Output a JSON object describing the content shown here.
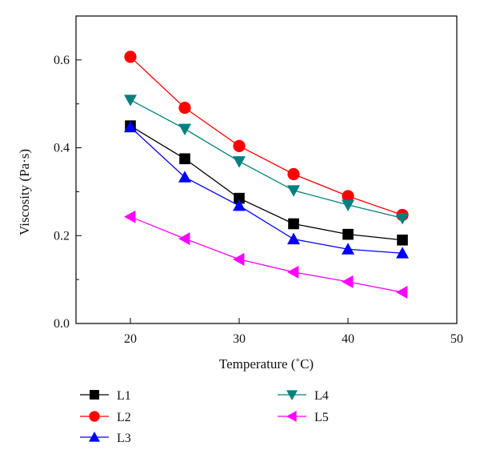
{
  "chart_data": {
    "type": "line",
    "title": "",
    "xlabel": "Temperature (˚C)",
    "ylabel": "Viscosity (Pa·s)",
    "xlim": [
      15,
      50
    ],
    "ylim": [
      0.0,
      0.7
    ],
    "xticks": [
      20,
      30,
      40,
      50
    ],
    "yticks": [
      0.0,
      0.2,
      0.4,
      0.6
    ],
    "xtick_labels": [
      "20",
      "30",
      "40",
      "50"
    ],
    "ytick_labels": [
      "0.0",
      "0.2",
      "0.4",
      "0.6"
    ],
    "grid": false,
    "legend_position": "bottom",
    "x": [
      20,
      25,
      30,
      35,
      40,
      45
    ],
    "series": [
      {
        "name": "L1",
        "color": "#000000",
        "marker": "square",
        "values": [
          0.45,
          0.375,
          0.285,
          0.227,
          0.203,
          0.19
        ]
      },
      {
        "name": "L2",
        "color": "#ff0000",
        "marker": "circle",
        "values": [
          0.607,
          0.491,
          0.404,
          0.34,
          0.29,
          0.247
        ]
      },
      {
        "name": "L3",
        "color": "#0000ff",
        "marker": "triangle-up",
        "values": [
          0.447,
          0.333,
          0.268,
          0.192,
          0.169,
          0.16
        ]
      },
      {
        "name": "L4",
        "color": "#008080",
        "marker": "triangle-down",
        "values": [
          0.509,
          0.443,
          0.369,
          0.303,
          0.27,
          0.24
        ]
      },
      {
        "name": "L5",
        "color": "#ff00ff",
        "marker": "triangle-left",
        "values": [
          0.243,
          0.193,
          0.146,
          0.117,
          0.095,
          0.071
        ]
      }
    ]
  }
}
